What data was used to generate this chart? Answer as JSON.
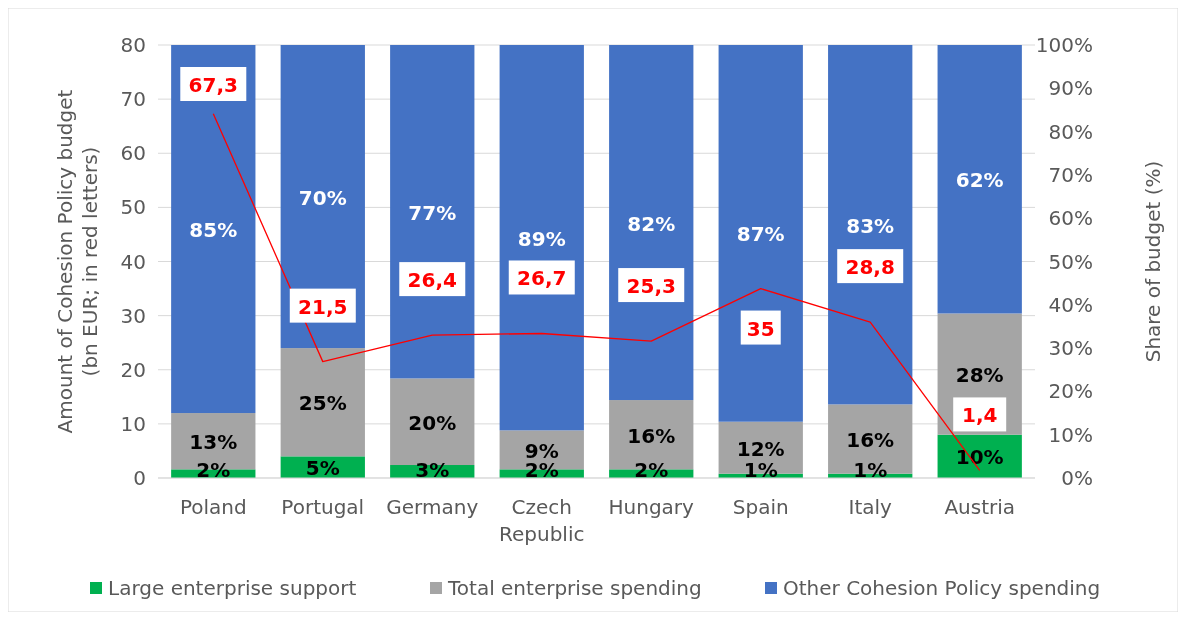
{
  "chart_data": {
    "type": "bar",
    "stacked": true,
    "categories": [
      "Poland",
      "Portugal",
      "Germany",
      "Czech Republic",
      "Hungary",
      "Spain",
      "Italy",
      "Austria"
    ],
    "ylabel": "Amount of Cohesion Policy budget (bn EUR; in red letters)",
    "y2label": "Share of budget (%)",
    "ylim": [
      0,
      80
    ],
    "yticks": [
      0,
      10,
      20,
      30,
      40,
      50,
      60,
      70,
      80
    ],
    "y2lim": [
      0,
      100
    ],
    "y2ticks": [
      {
        "value": 0,
        "label": "0%"
      },
      {
        "value": 10,
        "label": "10%"
      },
      {
        "value": 20,
        "label": "20%"
      },
      {
        "value": 30,
        "label": "30%"
      },
      {
        "value": 40,
        "label": "40%"
      },
      {
        "value": 50,
        "label": "50%"
      },
      {
        "value": 60,
        "label": "60%"
      },
      {
        "value": 70,
        "label": "70%"
      },
      {
        "value": 80,
        "label": "80%"
      },
      {
        "value": 90,
        "label": "90%"
      },
      {
        "value": 100,
        "label": "100%"
      }
    ],
    "grid": "y",
    "legend": "bottom",
    "series": [
      {
        "name": "Large enterprise support",
        "color": "#00b050",
        "axis": "y2",
        "values": [
          2,
          5,
          3,
          2,
          2,
          1,
          1,
          10
        ],
        "value_labels": [
          "2%",
          "5%",
          "3%",
          "2%",
          "2%",
          "1%",
          "1%",
          "10%"
        ]
      },
      {
        "name": "Total enterprise spending",
        "color": "#a5a5a5",
        "axis": "y2",
        "values": [
          13,
          25,
          20,
          9,
          16,
          12,
          16,
          28
        ],
        "value_labels": [
          "13%",
          "25%",
          "20%",
          "9%",
          "16%",
          "12%",
          "16%",
          "28%"
        ]
      },
      {
        "name": "Other Cohesion Policy spending",
        "color": "#4472c4",
        "axis": "y2",
        "values": [
          85,
          70,
          77,
          89,
          82,
          87,
          83,
          62
        ],
        "value_labels": [
          "85%",
          "70%",
          "77%",
          "89%",
          "82%",
          "87%",
          "83%",
          "62%"
        ]
      },
      {
        "type": "line",
        "color": "#ff0000",
        "axis": "y",
        "values": [
          67.3,
          21.5,
          26.4,
          26.7,
          25.3,
          35,
          28.8,
          1.4
        ],
        "value_labels": [
          "67,3",
          "21,5",
          "26,4",
          "26,7",
          "25,3",
          "35",
          "28,8",
          "1,4"
        ]
      }
    ]
  }
}
